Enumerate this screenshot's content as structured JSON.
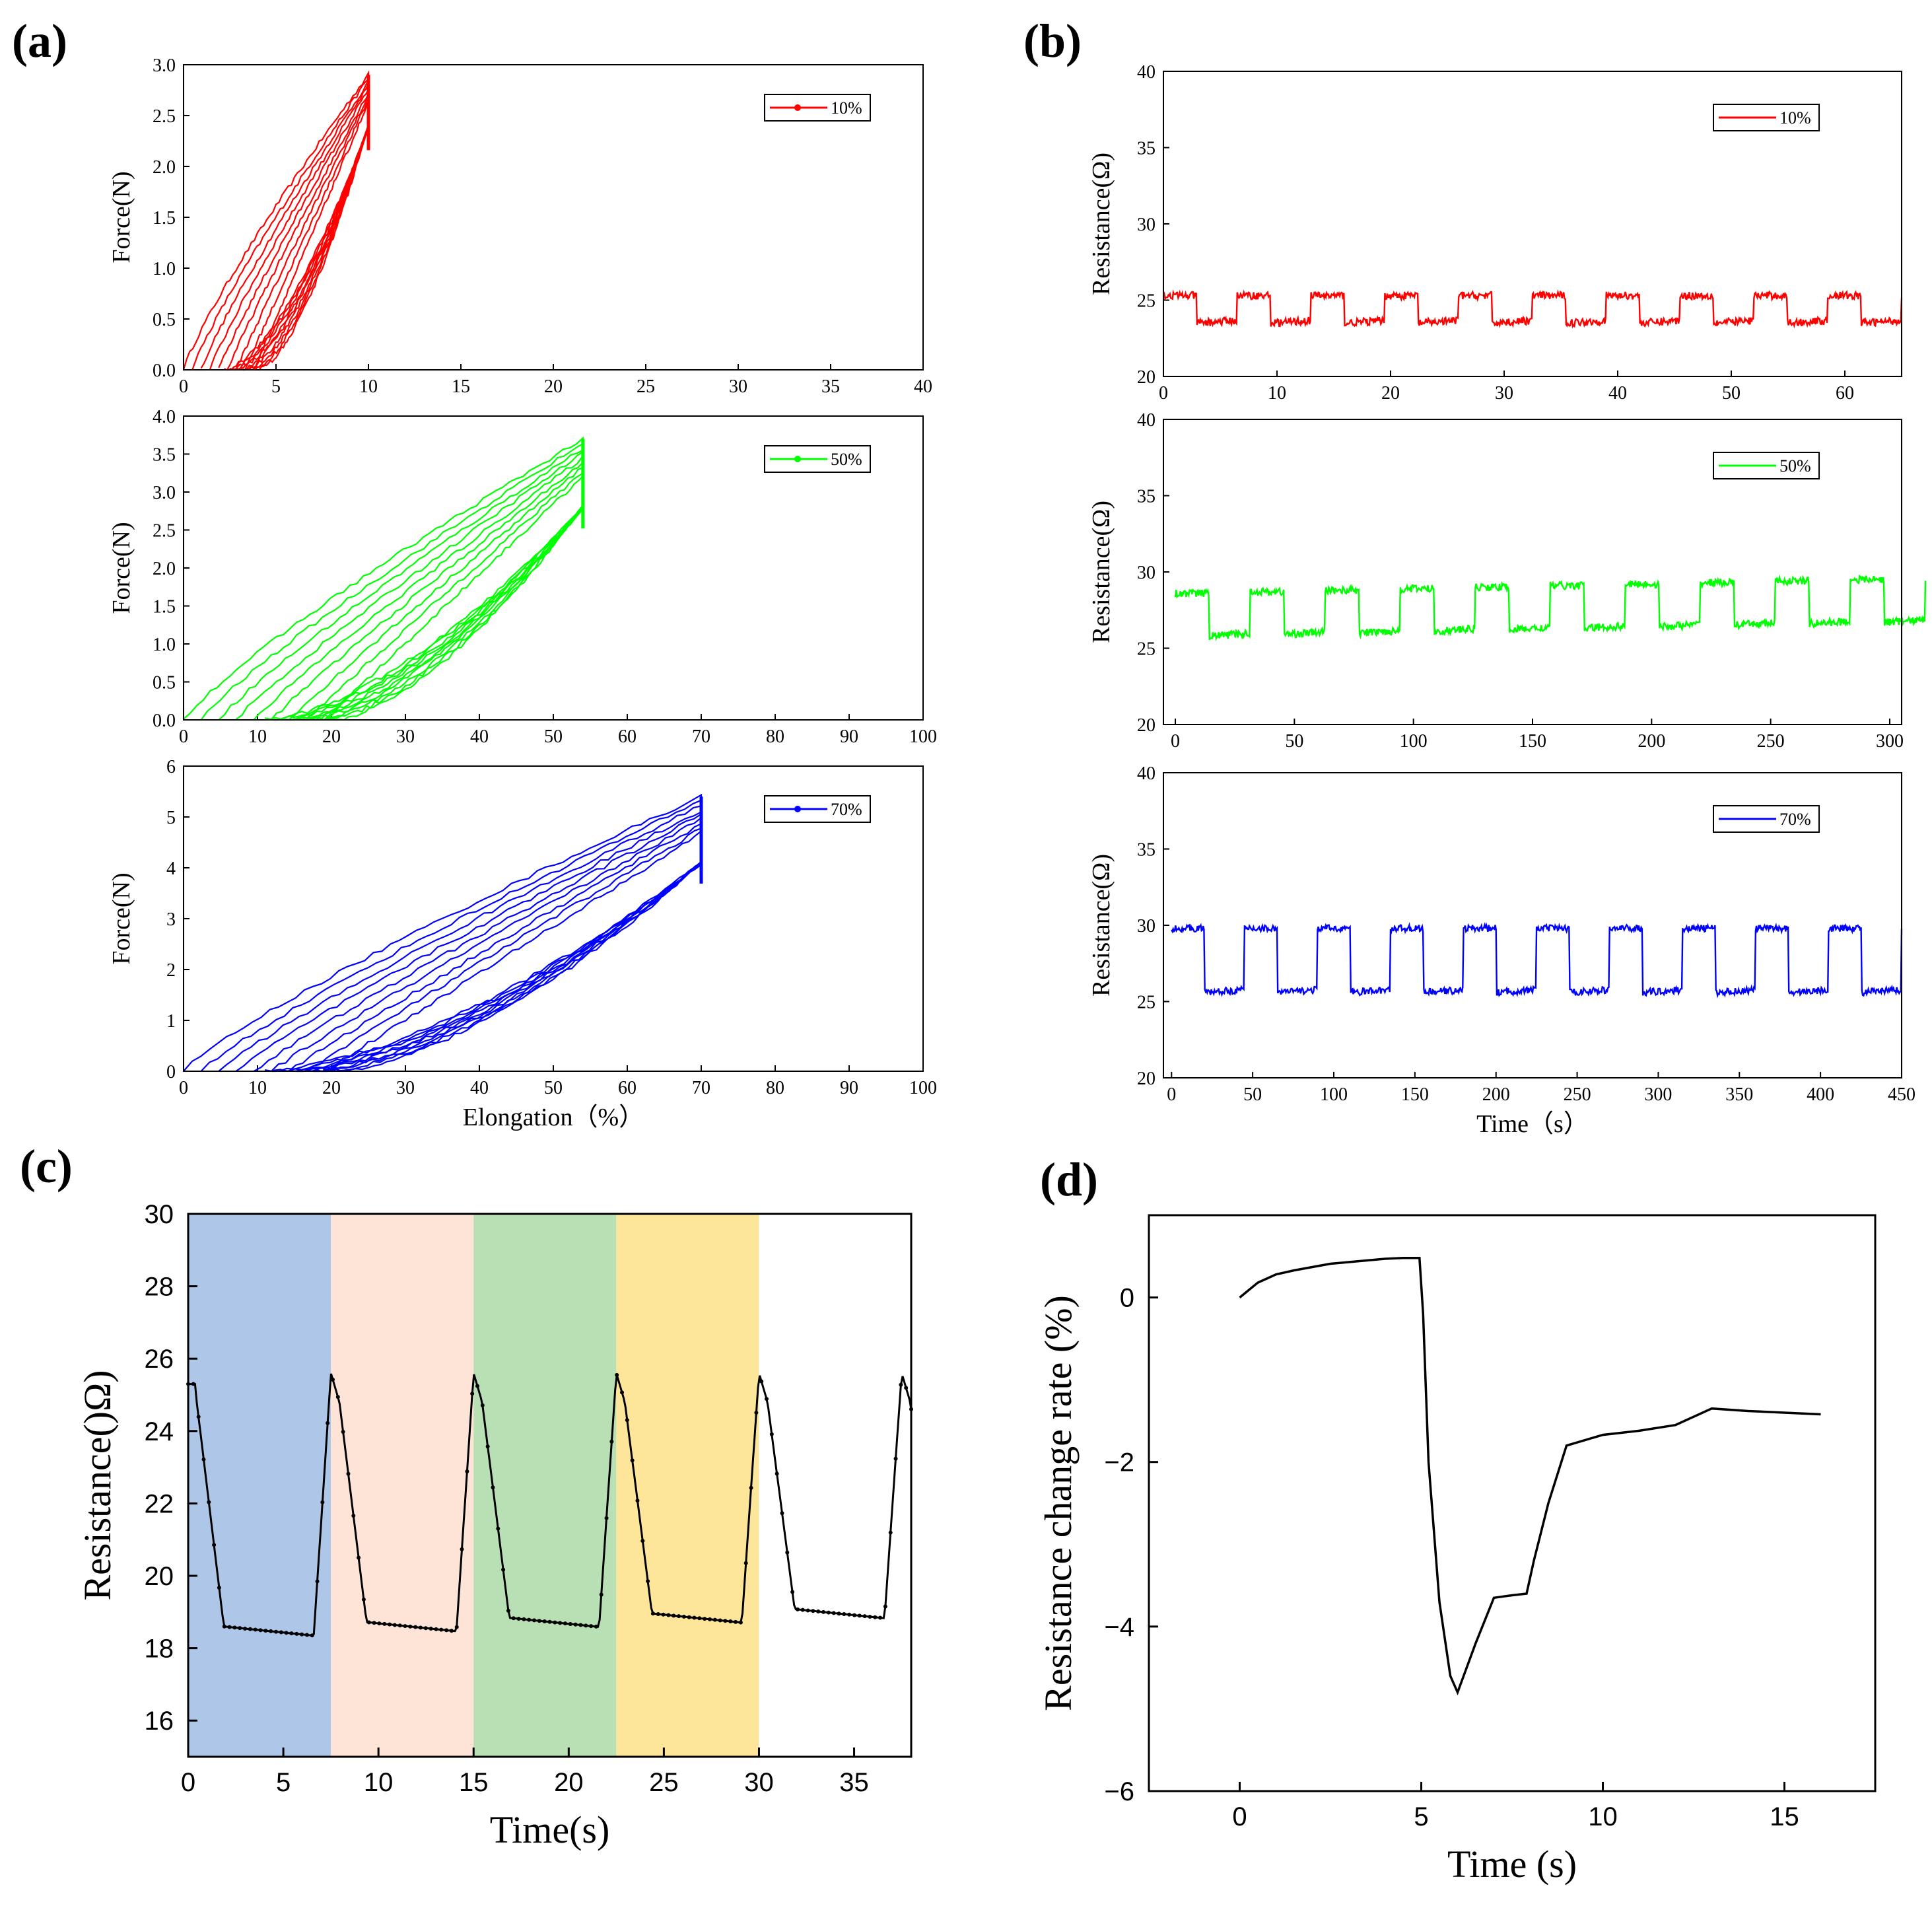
{
  "panel_labels": [
    "(a)",
    "(b)",
    "(c)",
    "(d)"
  ],
  "chart_data": [
    {
      "id": "a1",
      "panel": "(a)",
      "type": "line",
      "ylabel": "Force(N)",
      "xlabel": "",
      "xlim": [
        0,
        40
      ],
      "ylim": [
        0,
        3.0
      ],
      "xticks": [
        "0",
        "5",
        "10",
        "15",
        "20",
        "25",
        "30",
        "35",
        "40"
      ],
      "yticks": [
        "0.0",
        "0.5",
        "1.0",
        "1.5",
        "2.0",
        "2.5",
        "3.0"
      ],
      "legend": "10%",
      "legend_position": "top-right",
      "color": "#ff0000",
      "series": [
        {
          "name": "10%",
          "loading": [
            [
              0,
              0
            ],
            [
              2,
              0.3
            ],
            [
              5,
              1.4
            ],
            [
              10,
              2.9
            ]
          ],
          "unloading": [
            [
              10,
              2.4
            ],
            [
              7,
              1.0
            ],
            [
              5,
              0.2
            ],
            [
              4,
              0
            ]
          ]
        }
      ]
    },
    {
      "id": "a2",
      "panel": "(a)",
      "type": "line",
      "ylabel": "Force(N)",
      "xlabel": "",
      "xlim": [
        0,
        100
      ],
      "ylim": [
        0,
        4.0
      ],
      "xticks": [
        "0",
        "10",
        "20",
        "30",
        "40",
        "50",
        "60",
        "70",
        "80",
        "90",
        "100"
      ],
      "yticks": [
        "0.0",
        "0.5",
        "1.0",
        "1.5",
        "2.0",
        "2.5",
        "3.0",
        "3.5",
        "4.0"
      ],
      "legend": "50%",
      "legend_position": "top-right",
      "color": "#00ff00",
      "series": [
        {
          "name": "50%",
          "loading": [
            [
              0,
              0
            ],
            [
              10,
              0.8
            ],
            [
              30,
              2.0
            ],
            [
              54,
              3.7
            ]
          ],
          "unloading": [
            [
              54,
              2.8
            ],
            [
              40,
              1.2
            ],
            [
              30,
              0.4
            ],
            [
              20,
              0
            ]
          ]
        }
      ]
    },
    {
      "id": "a3",
      "panel": "(a)",
      "type": "line",
      "ylabel": "Force(N)",
      "xlabel": "Elongation（%）",
      "xlim": [
        0,
        100
      ],
      "ylim": [
        0,
        6
      ],
      "xticks": [
        "0",
        "10",
        "20",
        "30",
        "40",
        "50",
        "60",
        "70",
        "80",
        "90",
        "100"
      ],
      "yticks": [
        "0",
        "1",
        "2",
        "3",
        "4",
        "5",
        "6"
      ],
      "legend": "70%",
      "legend_position": "top-right",
      "color": "#0000ff",
      "series": [
        {
          "name": "70%",
          "loading": [
            [
              0,
              0
            ],
            [
              20,
              1.9
            ],
            [
              45,
              3.9
            ],
            [
              70,
              5.4
            ]
          ],
          "unloading": [
            [
              70,
              4.1
            ],
            [
              50,
              1.8
            ],
            [
              30,
              0.4
            ],
            [
              20,
              0
            ]
          ]
        }
      ]
    },
    {
      "id": "b1",
      "panel": "(b)",
      "type": "line",
      "ylabel": "Resistance(Ω)",
      "xlabel": "",
      "xlim": [
        0,
        65
      ],
      "ylim": [
        20,
        40
      ],
      "xticks": [
        "0",
        "10",
        "20",
        "30",
        "40",
        "50",
        "60"
      ],
      "yticks": [
        "20",
        "25",
        "30",
        "35",
        "40"
      ],
      "legend": "10%",
      "legend_position": "top-right",
      "color": "#ff0000",
      "series": [
        {
          "name": "10%",
          "period": 6.5,
          "low": 23.5,
          "high": 25.3,
          "cycles": 10
        }
      ]
    },
    {
      "id": "b2",
      "panel": "(b)",
      "type": "line",
      "ylabel": "Resistance(Ω)",
      "xlabel": "",
      "xlim": [
        -5,
        305
      ],
      "ylim": [
        20,
        40
      ],
      "xticks": [
        "0",
        "50",
        "100",
        "150",
        "200",
        "250",
        "300"
      ],
      "yticks": [
        "20",
        "25",
        "30",
        "35",
        "40"
      ],
      "legend": "50%",
      "legend_position": "top-right",
      "color": "#00ff00",
      "series": [
        {
          "name": "50%",
          "period": 31.5,
          "low": 25.8,
          "high": 28.6,
          "cycles": 10
        }
      ]
    },
    {
      "id": "b3",
      "panel": "(b)",
      "type": "line",
      "ylabel": "Resistance(Ω)",
      "xlabel": "Time（s）",
      "xlim": [
        -5,
        450
      ],
      "ylim": [
        20,
        40
      ],
      "xticks": [
        "0",
        "50",
        "100",
        "150",
        "200",
        "250",
        "300",
        "350",
        "400",
        "450"
      ],
      "yticks": [
        "20",
        "25",
        "30",
        "35",
        "40"
      ],
      "legend": "70%",
      "legend_position": "top-right",
      "color": "#0000ff",
      "series": [
        {
          "name": "70%",
          "period": 45,
          "low": 25.6,
          "high": 29.8,
          "cycles": 10
        }
      ]
    },
    {
      "id": "c",
      "panel": "(c)",
      "type": "line",
      "ylabel": "Resistance()Ω)",
      "xlabel": "Time(s)",
      "xlim": [
        0,
        38
      ],
      "ylim": [
        15,
        30
      ],
      "xticks": [
        "0",
        "5",
        "10",
        "15",
        "20",
        "25",
        "30",
        "35"
      ],
      "yticks": [
        "16",
        "18",
        "20",
        "22",
        "24",
        "26",
        "28",
        "30"
      ],
      "bands": [
        {
          "from": 0,
          "to": 7.5,
          "color": "#aec7e8"
        },
        {
          "from": 7.5,
          "to": 15,
          "color": "#fde4d6"
        },
        {
          "from": 15,
          "to": 22.5,
          "color": "#b9e0b4"
        },
        {
          "from": 22.5,
          "to": 30,
          "color": "#fde59a"
        }
      ],
      "color": "#000000",
      "series": [
        {
          "name": "resistance",
          "period": 7.5,
          "low": 18.6,
          "high": 25.6,
          "cycles": 5
        }
      ]
    },
    {
      "id": "d",
      "panel": "(d)",
      "type": "line",
      "ylabel": "Resistance change rate (%)",
      "xlabel": "Time (s)",
      "xlim": [
        -2.5,
        17.5
      ],
      "ylim": [
        -6,
        1
      ],
      "xticks": [
        "0",
        "5",
        "10",
        "15"
      ],
      "yticks": [
        "−6",
        "−4",
        "−2",
        "0"
      ],
      "color": "#000000",
      "series": [
        {
          "name": "change",
          "x": [
            0,
            0.5,
            1,
            1.5,
            2,
            2.5,
            3,
            3.5,
            4,
            4.5,
            4.95,
            5.05,
            5.2,
            5.5,
            5.8,
            6.0,
            6.5,
            7.0,
            7.5,
            7.9,
            8.1,
            8.5,
            9.0,
            10,
            11,
            12,
            13,
            14,
            15,
            16
          ],
          "y": [
            0,
            0.18,
            0.28,
            0.33,
            0.37,
            0.41,
            0.43,
            0.45,
            0.47,
            0.48,
            0.48,
            -0.2,
            -2.0,
            -3.7,
            -4.6,
            -4.8,
            -4.2,
            -3.65,
            -3.62,
            -3.6,
            -3.2,
            -2.5,
            -1.8,
            -1.67,
            -1.62,
            -1.55,
            -1.35,
            -1.38,
            -1.4,
            -1.42
          ]
        }
      ]
    }
  ]
}
